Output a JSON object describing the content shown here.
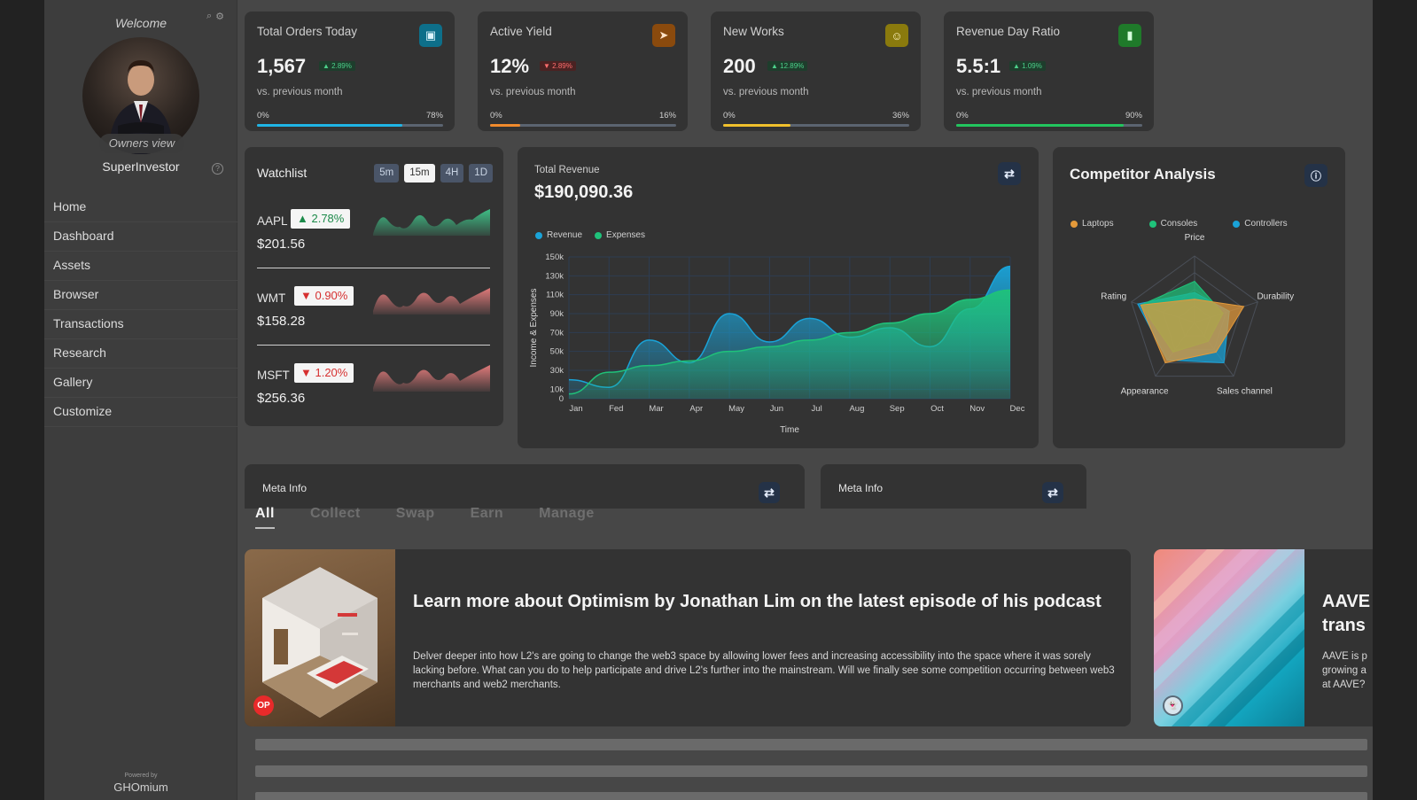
{
  "sidebar": {
    "welcome": "Welcome",
    "owners_view": "Owners view",
    "username": "SuperInvestor",
    "help_icon": "?",
    "nav": [
      "Home",
      "Dashboard",
      "Assets",
      "Browser",
      "Transactions",
      "Research",
      "Gallery",
      "Customize"
    ],
    "powered_by": "Powered by",
    "brand": "GHOmium"
  },
  "stats": [
    {
      "title": "Total Orders Today",
      "value": "1,567",
      "badge": "▲ 2.89%",
      "trend": "up",
      "sub": "vs. previous month",
      "min": "0%",
      "max": "78%",
      "progress": 78,
      "icon": "shopping-bag-icon",
      "icon_glyph": "▣",
      "icon_bg": "#0d6f8a",
      "bar_color": "#1fb5e6"
    },
    {
      "title": "Active Yield",
      "value": "12%",
      "badge": "▼ 2.89%",
      "trend": "down",
      "sub": "vs. previous month",
      "min": "0%",
      "max": "16%",
      "progress": 16,
      "icon": "send-icon",
      "icon_glyph": "➤",
      "icon_bg": "#8a4a0d",
      "bar_color": "#f08a2c"
    },
    {
      "title": "New Works",
      "value": "200",
      "badge": "▲ 12.89%",
      "trend": "up",
      "sub": "vs. previous month",
      "min": "0%",
      "max": "36%",
      "progress": 36,
      "icon": "users-icon",
      "icon_glyph": "☺",
      "icon_bg": "#8a7a0d",
      "bar_color": "#f0c02c"
    },
    {
      "title": "Revenue Day Ratio",
      "value": "5.5:1",
      "badge": "▲ 1.09%",
      "trend": "up",
      "sub": "vs. previous month",
      "min": "0%",
      "max": "90%",
      "progress": 90,
      "icon": "bar-chart-icon",
      "icon_glyph": "▮",
      "icon_bg": "#1f7a2a",
      "bar_color": "#22c55e"
    }
  ],
  "watchlist": {
    "title": "Watchlist",
    "tabs": [
      "5m",
      "15m",
      "4H",
      "1D"
    ],
    "active_tab": "15m",
    "items": [
      {
        "symbol": "AAPL",
        "change": "▲ 2.78%",
        "trend": "up",
        "price": "$201.56"
      },
      {
        "symbol": "WMT",
        "change": "▼ 0.90%",
        "trend": "down",
        "price": "$158.28"
      },
      {
        "symbol": "MSFT",
        "change": "▼ 1.20%",
        "trend": "down",
        "price": "$256.36"
      }
    ]
  },
  "revenue": {
    "title": "Total Revenue",
    "value": "$190,090.36",
    "refresh_icon": "refresh-icon",
    "colors": {
      "revenue": "#1aa3d8",
      "expenses": "#1fc27a"
    }
  },
  "chart_data": [
    {
      "type": "area",
      "xlabel": "Time",
      "ylabel": "Income & Expenses",
      "categories": [
        "Jan",
        "Fed",
        "Mar",
        "Apr",
        "May",
        "Jun",
        "Jul",
        "Aug",
        "Sep",
        "Oct",
        "Nov",
        "Dec"
      ],
      "y_ticks": [
        "0",
        "10k",
        "30k",
        "50k",
        "70k",
        "90k",
        "110k",
        "130k",
        "150k"
      ],
      "ylim": [
        0,
        150000
      ],
      "grid": true,
      "legend": "top-left",
      "series": [
        {
          "name": "Revenue",
          "values": [
            20000,
            12000,
            62000,
            38000,
            90000,
            60000,
            85000,
            65000,
            75000,
            55000,
            95000,
            140000
          ]
        },
        {
          "name": "Expenses",
          "values": [
            5000,
            28000,
            35000,
            40000,
            50000,
            55000,
            62000,
            70000,
            80000,
            90000,
            105000,
            115000
          ]
        }
      ]
    },
    {
      "type": "radar",
      "title": "Competitor Analysis",
      "axes": [
        "Price",
        "Durability",
        "Sales channel",
        "Appearance",
        "Rating"
      ],
      "legend": "top",
      "series": [
        {
          "name": "Laptops",
          "values": [
            0.35,
            0.78,
            0.55,
            0.75,
            0.85
          ]
        },
        {
          "name": "Consoles",
          "values": [
            0.62,
            0.45,
            0.35,
            0.55,
            0.85
          ]
        },
        {
          "name": "Controllers",
          "values": [
            0.45,
            0.55,
            0.75,
            0.7,
            0.9
          ]
        }
      ],
      "colors": {
        "Laptops": "#e49a3a",
        "Consoles": "#1fc27a",
        "Controllers": "#1aa3d8"
      }
    }
  ],
  "competitor": {
    "title": "Competitor Analysis",
    "info_icon": "info-icon"
  },
  "meta": [
    {
      "title": "Meta Info"
    },
    {
      "title": "Meta Info"
    }
  ],
  "tabs": [
    "All",
    "Collect",
    "Swap",
    "Earn",
    "Manage"
  ],
  "active_tab": "All",
  "articles": [
    {
      "title": "Learn more about Optimism by Jonathan Lim on the latest episode of his podcast",
      "body": "Delver deeper into how L2's are going to change the web3 space by allowing lower fees and increasing accessibility into the space where it was sorely lacking before. What can you do to help participate and drive L2's further into the mainstream. Will we finally see some competition occurring between web3 merchants and web2 merchants.",
      "badge": "OP"
    },
    {
      "title": "AAVE trans",
      "body": "AAVE is p growing a at AAVE?",
      "badge": "aave-icon"
    }
  ]
}
